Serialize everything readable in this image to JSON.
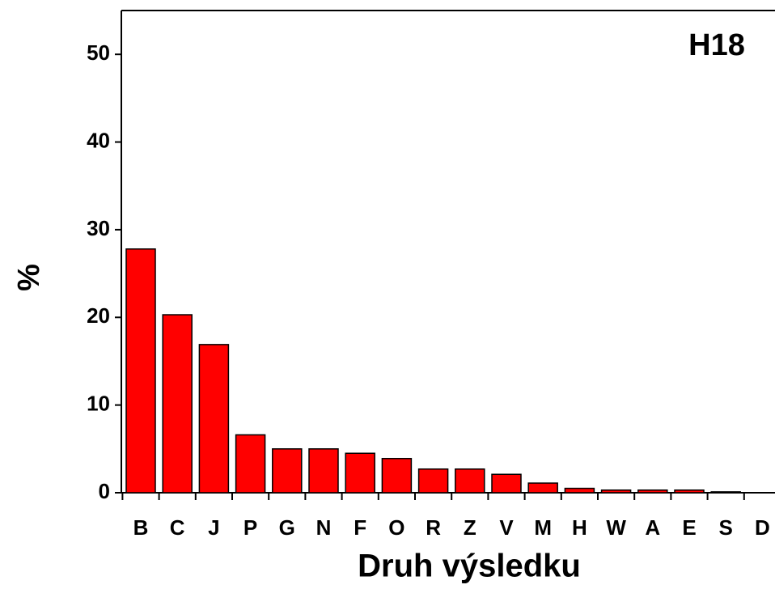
{
  "chart_data": {
    "type": "bar",
    "annotation": "H18",
    "x_label": "Druh výsledku",
    "y_label": "%",
    "categories": [
      "B",
      "C",
      "J",
      "P",
      "G",
      "N",
      "F",
      "O",
      "R",
      "Z",
      "V",
      "M",
      "H",
      "W",
      "A",
      "E",
      "S",
      "D"
    ],
    "values": [
      27.8,
      20.3,
      16.9,
      6.6,
      5.0,
      5.0,
      4.5,
      3.9,
      2.7,
      2.7,
      2.1,
      1.1,
      0.5,
      0.3,
      0.3,
      0.3,
      0.1,
      0
    ],
    "color": "#ff0000",
    "ylim": [
      0,
      55
    ],
    "yticks": [
      0,
      10,
      20,
      30,
      40,
      50
    ],
    "grid": false
  }
}
